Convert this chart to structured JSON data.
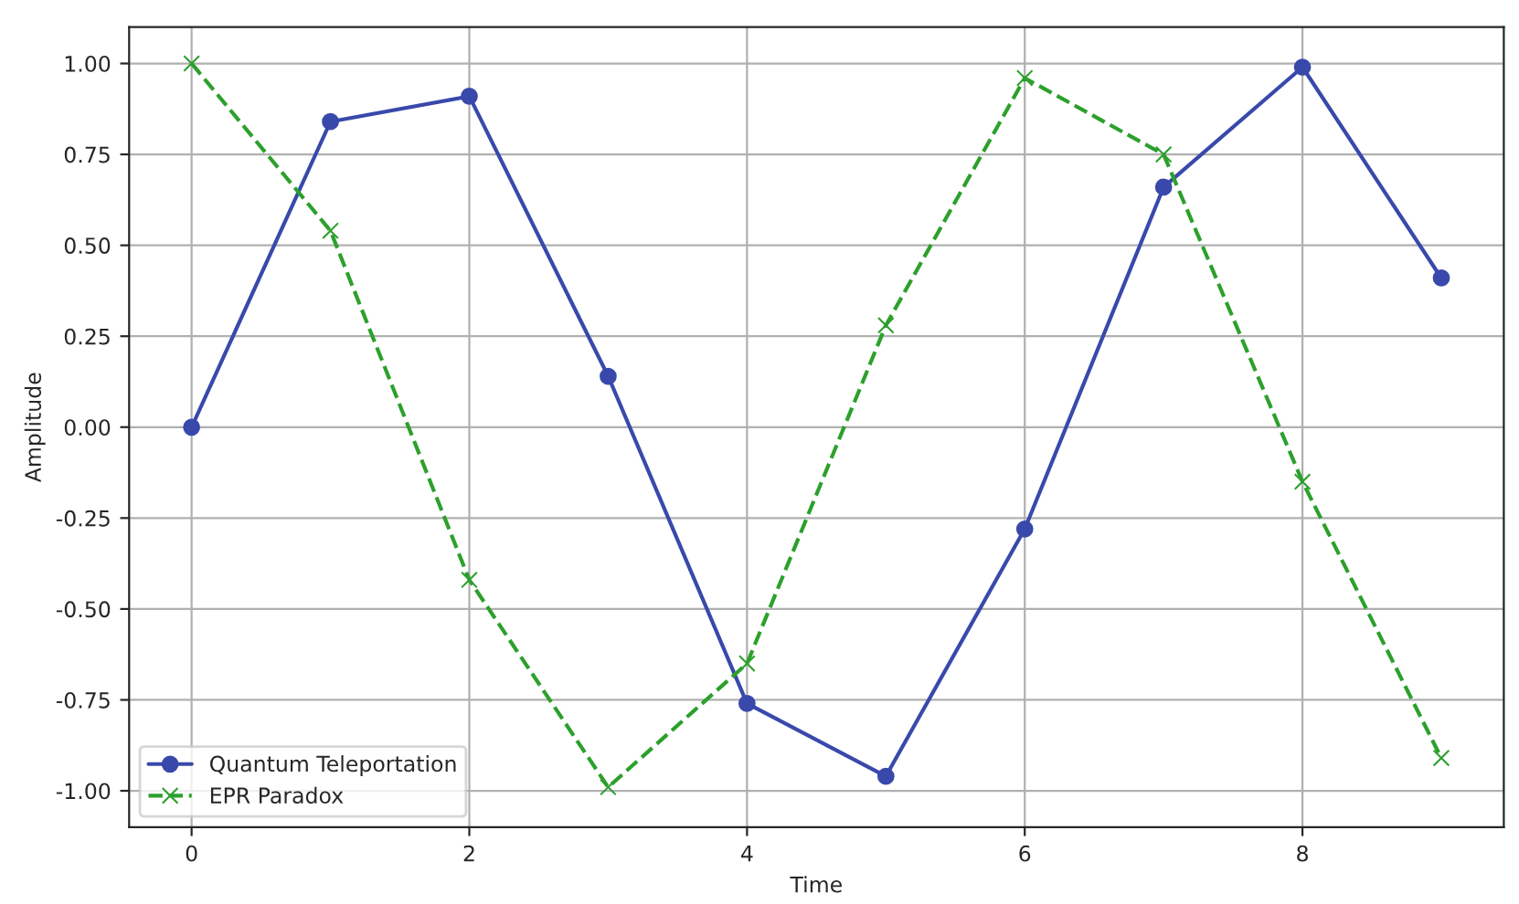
{
  "chart_data": {
    "type": "line",
    "xlabel": "Time",
    "ylabel": "Amplitude",
    "x": [
      0,
      1,
      2,
      3,
      4,
      5,
      6,
      7,
      8,
      9
    ],
    "series": [
      {
        "name": "Quantum Teleportation",
        "color": "#3949ab",
        "marker": "circle",
        "line_style": "solid",
        "values": [
          0.0,
          0.84,
          0.91,
          0.14,
          -0.76,
          -0.96,
          -0.28,
          0.66,
          0.99,
          0.41
        ]
      },
      {
        "name": "EPR Paradox",
        "color": "#2ca02c",
        "marker": "cross",
        "line_style": "dashed",
        "values": [
          1.0,
          0.54,
          -0.42,
          -0.99,
          -0.65,
          0.28,
          0.96,
          0.75,
          -0.15,
          -0.91
        ]
      }
    ],
    "xlim": [
      -0.45,
      9.45
    ],
    "xticks": [
      0,
      2,
      4,
      6,
      8
    ],
    "ylim": [
      -1.1,
      1.1
    ],
    "yticks": [
      {
        "value": -1,
        "label": "-1.00"
      },
      {
        "value": -0.75,
        "label": "-0.75"
      },
      {
        "value": -0.5,
        "label": "-0.50"
      },
      {
        "value": -0.25,
        "label": "-0.25"
      },
      {
        "value": 0,
        "label": "0.00"
      },
      {
        "value": 0.25,
        "label": "0.25"
      },
      {
        "value": 0.5,
        "label": "0.50"
      },
      {
        "value": 0.75,
        "label": "0.75"
      },
      {
        "value": 1,
        "label": "1.00"
      }
    ],
    "grid": true,
    "legend": "lower left"
  }
}
